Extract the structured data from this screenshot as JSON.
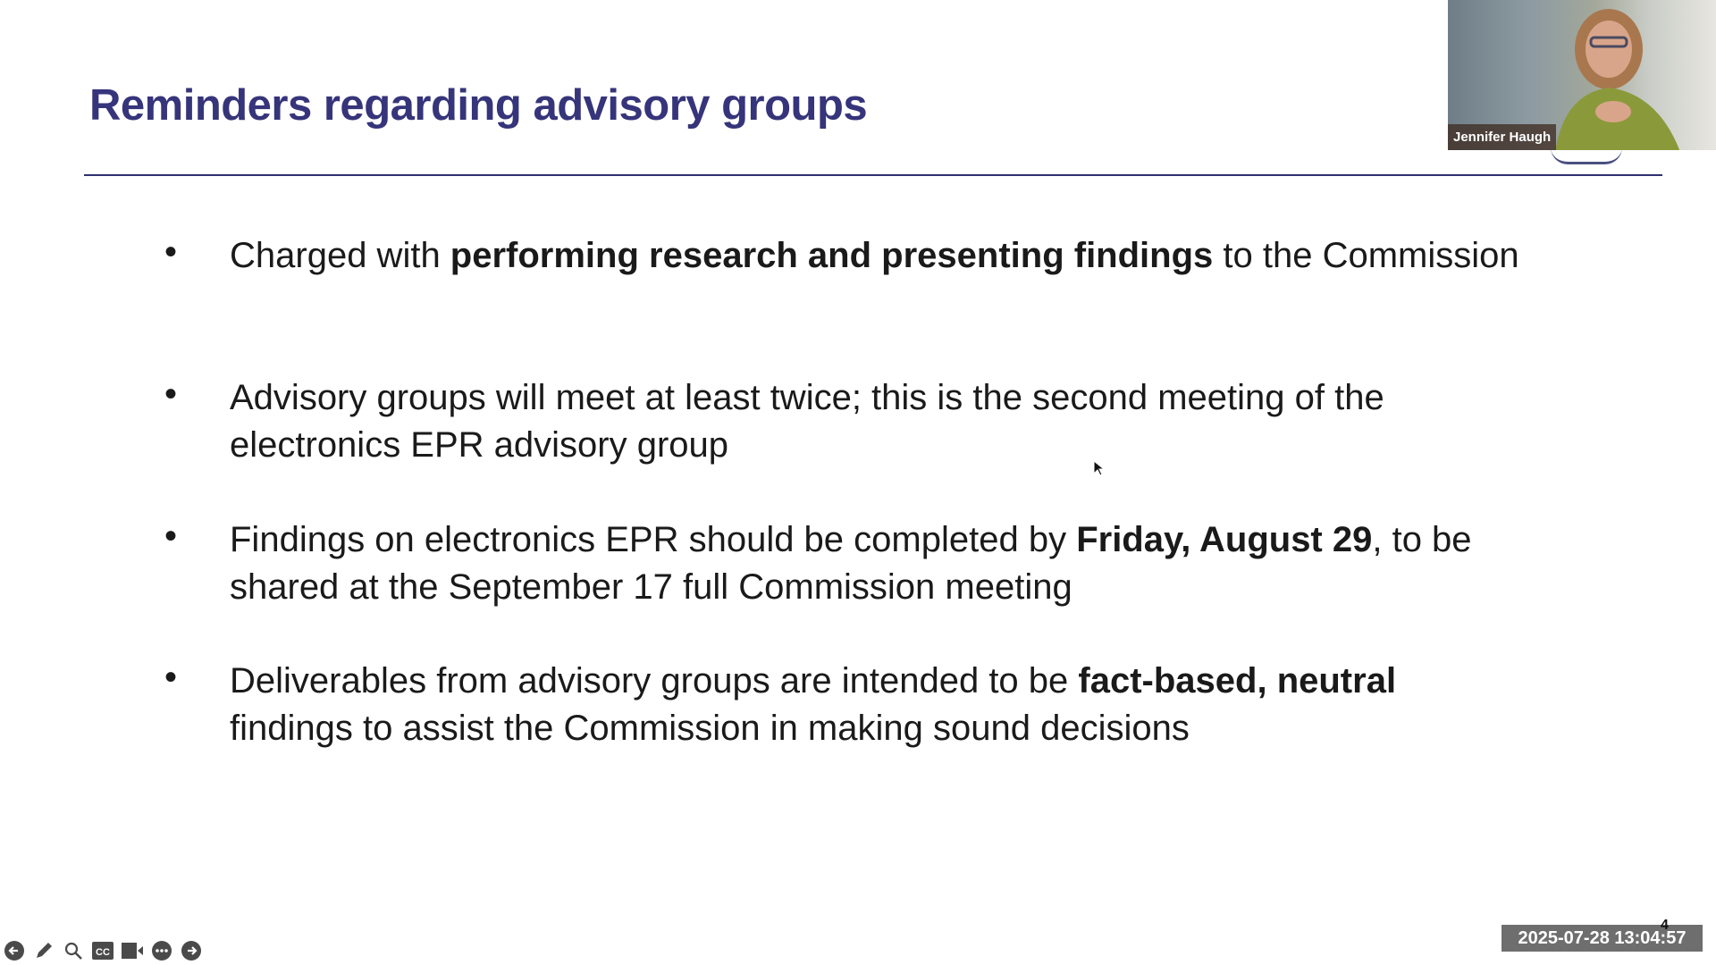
{
  "slide": {
    "title": "Reminders regarding advisory groups",
    "bullets": [
      {
        "parts": [
          {
            "t": "Charged with ",
            "b": false
          },
          {
            "t": "performing research and presenting findings",
            "b": true
          },
          {
            "t": " to the Commission",
            "b": false
          }
        ]
      },
      {
        "parts": [
          {
            "t": "Advisory groups will meet at least twice; this is the second meeting of the electronics EPR advisory group",
            "b": false
          }
        ]
      },
      {
        "parts": [
          {
            "t": "Findings on electronics EPR should be completed by ",
            "b": false
          },
          {
            "t": "Friday, August 29",
            "b": true
          },
          {
            "t": ", to be shared at the September 17 full Commission meeting",
            "b": false
          }
        ]
      },
      {
        "parts": [
          {
            "t": "Deliverables from advisory groups are intended to be ",
            "b": false
          },
          {
            "t": "fact-based, neutral",
            "b": true
          },
          {
            "t": " findings to assist the Commission in making sound decisions",
            "b": false
          }
        ]
      }
    ],
    "page_number": "4",
    "title_color": "#36347a"
  },
  "video": {
    "participant_name": "Jennifer Haugh"
  },
  "toolbar": {
    "icons": [
      "previous-icon",
      "pen-icon",
      "zoom-icon",
      "captions-icon",
      "video-icon",
      "more-icon",
      "next-icon"
    ],
    "cc_label": "CC"
  },
  "timestamp": "2025-07-28 13:04:57"
}
